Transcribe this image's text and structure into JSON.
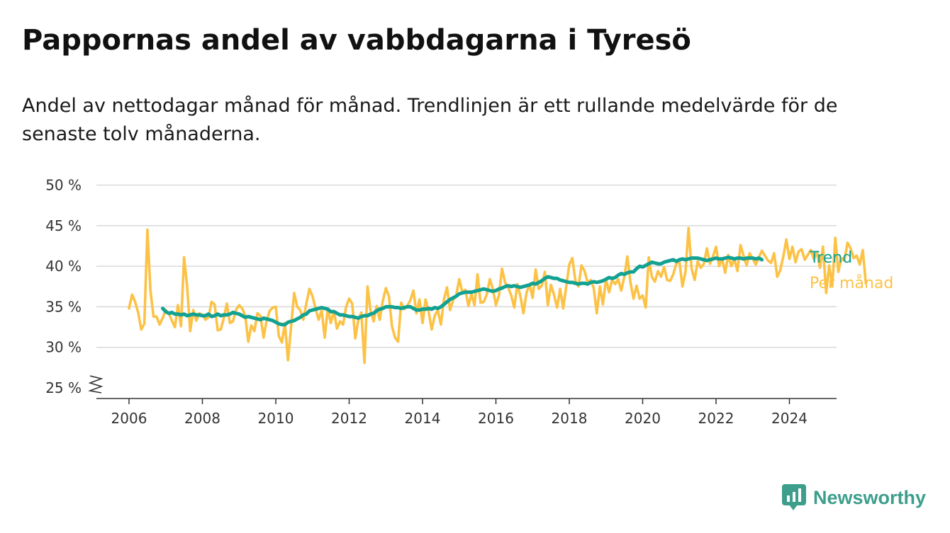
{
  "title": "Pappornas andel av vabbdagarna i Tyresö",
  "subtitle": "Andel av nettodagar månad för månad. Trendlinjen är ett rullande medelvärde för de senaste tolv månaderna.",
  "brand": {
    "name": "Newsworthy",
    "color": "#3d9e8c",
    "icon": "bar-chart-speech-bubble-icon"
  },
  "chart_data": {
    "type": "line",
    "xlabel": "",
    "ylabel": "",
    "x_ticks": [
      "2006",
      "2008",
      "2010",
      "2012",
      "2014",
      "2016",
      "2018",
      "2020",
      "2022",
      "2024"
    ],
    "y_ticks": [
      "25 %",
      "30 %",
      "35 %",
      "40 %",
      "45 %",
      "50 %"
    ],
    "xlim": [
      2005.1,
      2025.3
    ],
    "ylim": [
      24,
      50
    ],
    "grid": true,
    "y_axis_break": true,
    "legend": "direct-labels-right",
    "series": [
      {
        "name": "Per månad",
        "color": "#fcc246",
        "start": 2006.0,
        "step_months": 1,
        "values": [
          34.8,
          36.5,
          35.6,
          34.3,
          32.2,
          32.9,
          44.5,
          37.0,
          33.8,
          33.8,
          32.8,
          33.6,
          34.6,
          34.2,
          33.3,
          32.5,
          35.2,
          32.6,
          41.1,
          37.6,
          32.0,
          34.6,
          33.3,
          34.2,
          34.0,
          33.4,
          33.7,
          35.6,
          35.3,
          32.1,
          32.2,
          33.6,
          35.4,
          33.0,
          33.2,
          34.6,
          35.2,
          34.8,
          33.9,
          30.7,
          32.7,
          32.0,
          34.2,
          33.9,
          31.2,
          33.3,
          34.5,
          34.9,
          35.0,
          31.4,
          30.6,
          33.0,
          28.4,
          32.5,
          36.7,
          35.0,
          34.6,
          33.4,
          35.4,
          37.2,
          36.3,
          34.8,
          33.4,
          34.6,
          31.2,
          34.8,
          33.0,
          34.5,
          32.3,
          33.2,
          32.8,
          35.0,
          36.0,
          35.4,
          31.1,
          33.4,
          34.3,
          28.1,
          37.5,
          34.5,
          33.2,
          35.1,
          33.4,
          35.7,
          37.3,
          36.3,
          32.6,
          31.2,
          30.7,
          35.5,
          34.7,
          35.1,
          35.8,
          37.0,
          34.2,
          35.9,
          33.0,
          35.9,
          34.4,
          32.2,
          33.9,
          34.6,
          32.8,
          35.9,
          37.4,
          34.6,
          35.8,
          36.4,
          38.4,
          36.8,
          37.1,
          35.1,
          36.6,
          35.2,
          39.0,
          35.5,
          35.6,
          36.5,
          38.4,
          37.2,
          35.2,
          36.4,
          39.7,
          38.0,
          37.4,
          36.4,
          34.9,
          37.8,
          36.3,
          34.2,
          36.7,
          37.8,
          36.1,
          39.6,
          37.2,
          37.6,
          39.3,
          35.2,
          37.7,
          36.5,
          34.9,
          37.2,
          34.8,
          37.5,
          40.2,
          41.0,
          38.2,
          37.5,
          40.1,
          39.4,
          38.0,
          38.3,
          37.3,
          34.2,
          37.5,
          35.3,
          38.4,
          36.8,
          38.3,
          37.8,
          38.4,
          37.0,
          38.7,
          41.2,
          38.0,
          36.0,
          37.6,
          36.0,
          36.4,
          34.9,
          41.1,
          38.7,
          38.1,
          39.4,
          38.7,
          39.9,
          38.3,
          38.2,
          39.0,
          40.3,
          40.6,
          37.5,
          39.3,
          44.7,
          39.7,
          38.3,
          40.6,
          39.8,
          40.3,
          42.2,
          40.3,
          41.2,
          42.4,
          40.0,
          40.9,
          39.2,
          41.4,
          40.0,
          40.9,
          39.4,
          42.6,
          41.3,
          40.1,
          41.6,
          40.9,
          40.2,
          41.1,
          41.9,
          41.3,
          40.7,
          40.4,
          41.6,
          38.7,
          39.5,
          41.2,
          43.3,
          40.9,
          42.4,
          40.5,
          41.8,
          42.1,
          40.8,
          41.4,
          42.0,
          40.9,
          41.7,
          39.8,
          42.4,
          36.7,
          40.1,
          37.5,
          43.5,
          39.3,
          41.0,
          40.7,
          42.9,
          42.2,
          41.0,
          41.3,
          40.2,
          42.0,
          37.9
        ]
      },
      {
        "name": "Trend",
        "color": "#13a192",
        "start": 2006.917,
        "step_months": 1,
        "values": [
          34.8,
          34.4,
          34.2,
          34.3,
          34.1,
          34.1,
          34.0,
          34.1,
          33.9,
          34.0,
          34.1,
          34.0,
          34.0,
          33.9,
          33.9,
          34.1,
          33.8,
          33.9,
          34.1,
          33.9,
          34.0,
          34.0,
          34.1,
          34.3,
          34.2,
          34.1,
          33.9,
          33.7,
          33.8,
          33.7,
          33.6,
          33.5,
          33.4,
          33.6,
          33.5,
          33.4,
          33.3,
          33.1,
          32.9,
          32.8,
          32.8,
          33.1,
          33.2,
          33.3,
          33.5,
          33.7,
          34.0,
          34.1,
          34.5,
          34.6,
          34.7,
          34.8,
          34.9,
          34.8,
          34.7,
          34.4,
          34.4,
          34.2,
          34.0,
          34.0,
          33.9,
          33.8,
          33.8,
          33.7,
          33.6,
          33.8,
          33.9,
          33.9,
          34.1,
          34.2,
          34.5,
          34.7,
          34.8,
          35.0,
          35.0,
          35.0,
          34.9,
          34.9,
          34.8,
          34.9,
          35.0,
          35.0,
          34.8,
          34.6,
          34.6,
          34.7,
          34.7,
          34.8,
          34.7,
          34.9,
          34.8,
          35.0,
          35.3,
          35.6,
          35.9,
          36.1,
          36.3,
          36.6,
          36.7,
          36.8,
          36.8,
          36.8,
          36.9,
          37.0,
          37.1,
          37.2,
          37.1,
          37.0,
          36.9,
          37.0,
          37.2,
          37.3,
          37.5,
          37.6,
          37.5,
          37.6,
          37.5,
          37.4,
          37.5,
          37.6,
          37.7,
          37.9,
          37.8,
          38.0,
          38.2,
          38.5,
          38.7,
          38.6,
          38.5,
          38.5,
          38.3,
          38.2,
          38.1,
          38.0,
          38.0,
          37.9,
          37.8,
          37.9,
          37.9,
          37.8,
          38.0,
          38.1,
          38.0,
          38.1,
          38.2,
          38.4,
          38.6,
          38.5,
          38.6,
          38.9,
          39.1,
          39.0,
          39.2,
          39.3,
          39.3,
          39.7,
          40.0,
          39.9,
          40.1,
          40.3,
          40.5,
          40.4,
          40.3,
          40.3,
          40.5,
          40.6,
          40.7,
          40.8,
          40.6,
          40.8,
          40.9,
          40.8,
          40.9,
          41.0,
          41.0,
          41.0,
          40.9,
          40.8,
          40.7,
          40.8,
          40.9,
          41.0,
          40.9,
          40.9,
          41.0,
          41.1,
          41.0,
          40.9,
          41.0,
          41.0,
          40.9,
          41.0,
          41.0,
          41.0,
          40.9,
          41.0,
          40.8
        ]
      }
    ]
  }
}
